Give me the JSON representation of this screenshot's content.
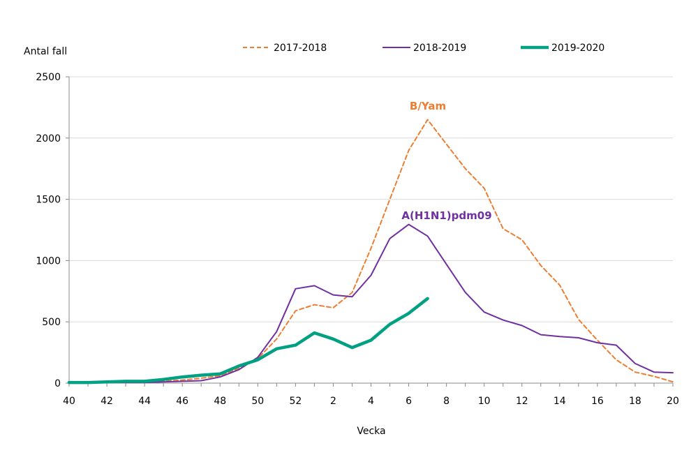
{
  "chart_data": {
    "type": "line",
    "ylabel": "Antal fall",
    "xlabel": "Vecka",
    "ylim": [
      0,
      2500
    ],
    "y_ticks": [
      0,
      500,
      1000,
      1500,
      2000,
      2500
    ],
    "grid": true,
    "legend_position": "top",
    "x_categories": [
      "40",
      "41",
      "42",
      "43",
      "44",
      "45",
      "46",
      "47",
      "48",
      "49",
      "50",
      "51",
      "52",
      "1",
      "2",
      "3",
      "4",
      "5",
      "6",
      "7",
      "8",
      "9",
      "10",
      "11",
      "12",
      "13",
      "14",
      "15",
      "16",
      "17",
      "18",
      "19",
      "20"
    ],
    "x_tick_labels": [
      "40",
      "42",
      "44",
      "46",
      "48",
      "50",
      "52",
      "2",
      "4",
      "6",
      "8",
      "10",
      "12",
      "14",
      "16",
      "18",
      "20"
    ],
    "series": [
      {
        "name": "2017-2018",
        "color": "#ED7D31",
        "style": "dashed",
        "values": [
          5,
          5,
          8,
          10,
          10,
          15,
          25,
          40,
          60,
          120,
          200,
          360,
          590,
          640,
          615,
          740,
          1100,
          1500,
          1900,
          2150,
          1950,
          1750,
          1590,
          1260,
          1170,
          960,
          800,
          520,
          350,
          190,
          90,
          55,
          10
        ]
      },
      {
        "name": "2018-2019",
        "color": "#7030A0",
        "style": "solid",
        "values": [
          5,
          5,
          5,
          5,
          5,
          10,
          15,
          20,
          50,
          110,
          210,
          420,
          770,
          795,
          720,
          705,
          880,
          1180,
          1295,
          1200,
          970,
          740,
          580,
          515,
          470,
          395,
          380,
          370,
          330,
          310,
          160,
          90,
          85
        ]
      },
      {
        "name": "2019-2020",
        "color": "#00A082",
        "style": "thick",
        "values": [
          5,
          5,
          10,
          15,
          15,
          30,
          50,
          65,
          75,
          140,
          190,
          280,
          310,
          410,
          360,
          290,
          350,
          480,
          570,
          690
        ]
      }
    ],
    "annotations": [
      {
        "text": "B/Yam",
        "color": "#ED7D31"
      },
      {
        "text": "A(H1N1)pdm09",
        "color": "#7030A0"
      }
    ]
  }
}
